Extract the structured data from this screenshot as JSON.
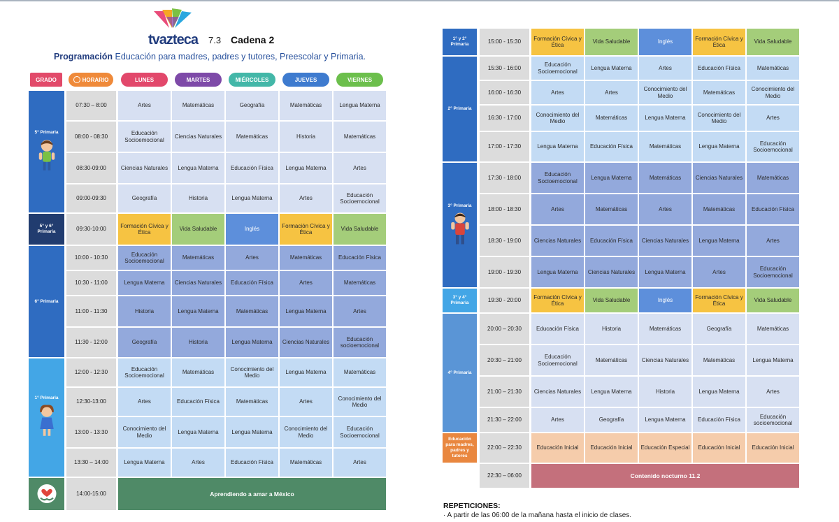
{
  "header": {
    "channel_number": "7.3",
    "channel_name": "Cadena 2",
    "program_label": "Programación",
    "program_desc": "Educación para madres, padres y tutores, Preescolar y Primaria."
  },
  "logo": {
    "text": "tvazteca",
    "icon": "tv-azteca-logo-icon"
  },
  "colors": {
    "pale": "#d7e0f2",
    "mid": "#93a9dc",
    "light": "#c3dbf4",
    "civica": "#f6c342",
    "saludable": "#a4cd7a",
    "ingles": "#5d8fdb",
    "inicial": "#f5ccab",
    "especial": "#f5ccab",
    "nocturno": "#c4707c",
    "amar": "#4f8a67",
    "time": "#dcdcdc"
  },
  "columns": {
    "grado": "GRADO",
    "horario": "HORARIO",
    "days": [
      "LUNES",
      "MARTES",
      "MIÉRCOLES",
      "JUEVES",
      "VIERNES"
    ]
  },
  "left": {
    "rows": [
      {
        "time": "07:30 – 8:00",
        "shade": "pale",
        "cells": [
          "Artes",
          "Matemáticas",
          "Geografía",
          "Matemáticas",
          "Lengua Materna"
        ]
      },
      {
        "time": "08:00 - 08:30",
        "shade": "pale",
        "cells": [
          "Educación Socioemocional",
          "Ciencias Naturales",
          "Matemáticas",
          "Historia",
          "Matemáticas"
        ]
      },
      {
        "time": "08:30-09:00",
        "shade": "pale",
        "cells": [
          "Ciencias Naturales",
          "Lengua Materna",
          "Educación Física",
          "Lengua Materna",
          "Artes"
        ]
      },
      {
        "time": "09:00-09:30",
        "shade": "pale",
        "cells": [
          "Geografía",
          "Historia",
          "Lengua Materna",
          "Artes",
          "Educación Socioemocional"
        ]
      },
      {
        "time": "09:30-10:00",
        "shade": "special",
        "cells": [
          "Formación Cívica y Ética",
          "Vida Saludable",
          "Inglés",
          "Formación Cívica y Ética",
          "Vida Saludable"
        ]
      },
      {
        "time": "10:00 - 10:30",
        "shade": "mid",
        "cells": [
          "Educación Socioemocional",
          "Matemáticas",
          "Artes",
          "Matemáticas",
          "Educación Física"
        ]
      },
      {
        "time": "10:30 - 11:00",
        "shade": "mid",
        "cells": [
          "Lengua Materna",
          "Ciencias Naturales",
          "Educación Física",
          "Artes",
          "Matemáticas"
        ]
      },
      {
        "time": "11:00 - 11:30",
        "shade": "mid",
        "cells": [
          "Historia",
          "Lengua Materna",
          "Matemáticas",
          "Lengua Materna",
          "Artes"
        ]
      },
      {
        "time": "11:30 - 12:00",
        "shade": "mid",
        "cells": [
          "Geografía",
          "Historia",
          "Lengua Materna",
          "Ciencias Naturales",
          "Educación socioemocional"
        ]
      },
      {
        "time": "12:00 - 12:30",
        "shade": "light",
        "cells": [
          "Educación Socioemocional",
          "Matemáticas",
          "Conocimiento del Medio",
          "Lengua Materna",
          "Matemáticas"
        ]
      },
      {
        "time": "12:30-13:00",
        "shade": "light",
        "cells": [
          "Artes",
          "Educación Física",
          "Matemáticas",
          "Artes",
          "Conocimiento del Medio"
        ]
      },
      {
        "time": "13:00 - 13:30",
        "shade": "light",
        "cells": [
          "Conocimiento del Medio",
          "Lengua Materna",
          "Lengua Materna",
          "Conocimiento del Medio",
          "Educación Socioemocional"
        ]
      },
      {
        "time": "13:30 – 14:00",
        "shade": "light",
        "cells": [
          "Lengua Materna",
          "Artes",
          "Educación Física",
          "Matemáticas",
          "Artes"
        ]
      },
      {
        "time": "14:00-15:00",
        "shade": "amar",
        "wide": "Aprendiendo a amar a México"
      }
    ],
    "grades": [
      {
        "label": "5° Primaria",
        "color": "#2f6cc1",
        "figure": "boy-figure-icon"
      },
      {
        "label": "5° y 6° Primaria",
        "color": "#213c6f"
      },
      {
        "label": "6° Primaria",
        "color": "#2f6cc1"
      },
      {
        "label": "1° Primaria",
        "color": "#43a6e6",
        "figure": "girl-figure-icon"
      },
      {
        "label": "",
        "color": "#4f8a67",
        "figure": "hands-heart-icon"
      }
    ]
  },
  "right": {
    "rows": [
      {
        "time": "15:00 - 15:30",
        "shade": "special",
        "cells": [
          "Formación Cívica y Ética",
          "Vida Saludable",
          "Inglés",
          "Formación Cívica y Ética",
          "Vida Saludable"
        ]
      },
      {
        "time": "15:30 - 16:00",
        "shade": "light",
        "cells": [
          "Educación Socioemocional",
          "Lengua Materna",
          "Artes",
          "Educación Física",
          "Matemáticas"
        ]
      },
      {
        "time": "16:00 - 16:30",
        "shade": "light",
        "cells": [
          "Artes",
          "Artes",
          "Conocimiento del Medio",
          "Matemáticas",
          "Conocimiento del Medio"
        ]
      },
      {
        "time": "16:30 - 17:00",
        "shade": "light",
        "cells": [
          "Conocimiento del Medio",
          "Matemáticas",
          "Lengua Materna",
          "Conocimiento del Medio",
          "Artes"
        ]
      },
      {
        "time": "17:00 - 17:30",
        "shade": "light",
        "cells": [
          "Lengua Materna",
          "Educación Física",
          "Matemáticas",
          "Lengua Materna",
          "Educación Socioemocional"
        ]
      },
      {
        "time": "17:30 - 18:00",
        "shade": "mid",
        "cells": [
          "Educación Socioemocional",
          "Lengua Materna",
          "Matemáticas",
          "Ciencias Naturales",
          "Matemáticas"
        ]
      },
      {
        "time": "18:00 - 18:30",
        "shade": "mid",
        "cells": [
          "Artes",
          "Matemáticas",
          "Artes",
          "Matemáticas",
          "Educación Física"
        ]
      },
      {
        "time": "18:30 - 19:00",
        "shade": "mid",
        "cells": [
          "Ciencias Naturales",
          "Educación Física",
          "Ciencias Naturales",
          "Lengua Materna",
          "Artes"
        ]
      },
      {
        "time": "19:00 - 19:30",
        "shade": "mid",
        "cells": [
          "Lengua Materna",
          "Ciencias Naturales",
          "Lengua Materna",
          "Artes",
          "Educación Socioemocional"
        ]
      },
      {
        "time": "19:30 - 20:00",
        "shade": "special",
        "cells": [
          "Formación Cívica y Ética",
          "Vida Saludable",
          "Inglés",
          "Formación Cívica y Ética",
          "Vida Saludable"
        ]
      },
      {
        "time": "20:00 – 20:30",
        "shade": "pale",
        "cells": [
          "Educación Física",
          "Historia",
          "Matemáticas",
          "Geografía",
          "Matemáticas"
        ]
      },
      {
        "time": "20:30 – 21:00",
        "shade": "pale",
        "cells": [
          "Educación Socioemocional",
          "Matemáticas",
          "Ciencias Naturales",
          "Matemáticas",
          "Lengua Materna"
        ]
      },
      {
        "time": "21:00 – 21:30",
        "shade": "pale",
        "cells": [
          "Ciencias Naturales",
          "Lengua Materna",
          "Historia",
          "Lengua Materna",
          "Artes"
        ]
      },
      {
        "time": "21:30 – 22:00",
        "shade": "pale",
        "cells": [
          "Artes",
          "Geografía",
          "Lengua Materna",
          "Educación Física",
          "Educación socioemocional"
        ]
      },
      {
        "time": "22:00 – 22:30",
        "shade": "inicial",
        "cells": [
          "Educación Inicial",
          "Educación Inicial",
          "Educación Especial",
          "Educación Inicial",
          "Educación Inicial"
        ]
      },
      {
        "time": "22:30 – 06:00",
        "shade": "nocturno",
        "wide": "Contenido nocturno 11.2"
      }
    ],
    "grades": [
      {
        "label": "1° y 2° Primaria",
        "color": "#2f6cc1"
      },
      {
        "label": "2° Primaria",
        "color": "#2f6cc1"
      },
      {
        "label": "3° Primaria",
        "color": "#2f6cc1",
        "figure": "man-figure-icon"
      },
      {
        "label": "3° y 4° Primaria",
        "color": "#43a6e6"
      },
      {
        "label": "4° Primaria",
        "color": "#5a95d6"
      },
      {
        "label": "Educación para madres, padres y tutores",
        "color": "#e9873f"
      },
      {
        "label": "",
        "color": "#ffffff"
      }
    ]
  },
  "footer": {
    "title": "REPETICIONES:",
    "note": "· A partir de las 06:00 de la mañana hasta el inicio de clases."
  }
}
